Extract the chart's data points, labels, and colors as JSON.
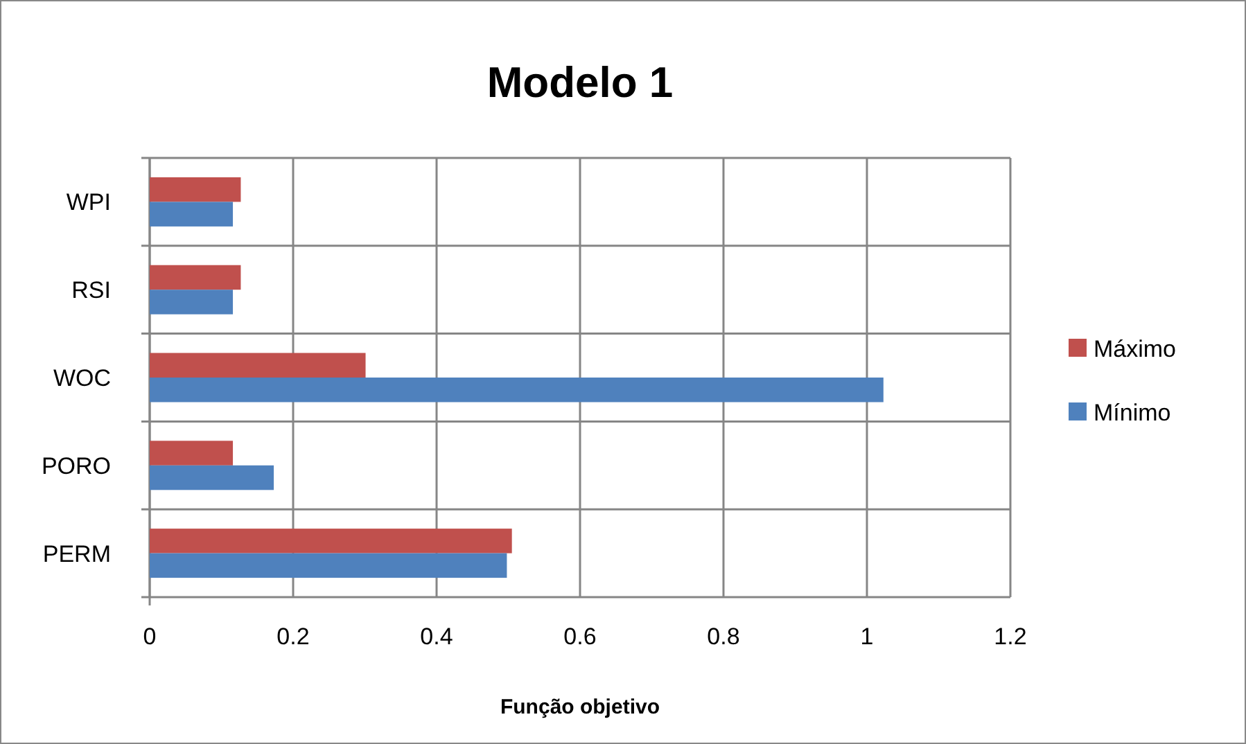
{
  "chart_data": {
    "type": "bar",
    "orientation": "horizontal",
    "title": "Modelo 1",
    "xlabel": "Função objetivo",
    "categories": [
      "WPI",
      "RSI",
      "WOC",
      "PORO",
      "PERM"
    ],
    "series": [
      {
        "name": "Máximo",
        "color": "#c0504d",
        "values": [
          0.127,
          0.127,
          0.301,
          0.116,
          0.505
        ]
      },
      {
        "name": "Mínimo",
        "color": "#4f81bd",
        "values": [
          0.116,
          0.116,
          1.023,
          0.173,
          0.498
        ]
      }
    ],
    "xlim": [
      0,
      1.2
    ],
    "xticks": [
      0,
      0.2,
      0.4,
      0.6,
      0.8,
      1,
      1.2
    ],
    "grid": true,
    "legend": "right"
  }
}
